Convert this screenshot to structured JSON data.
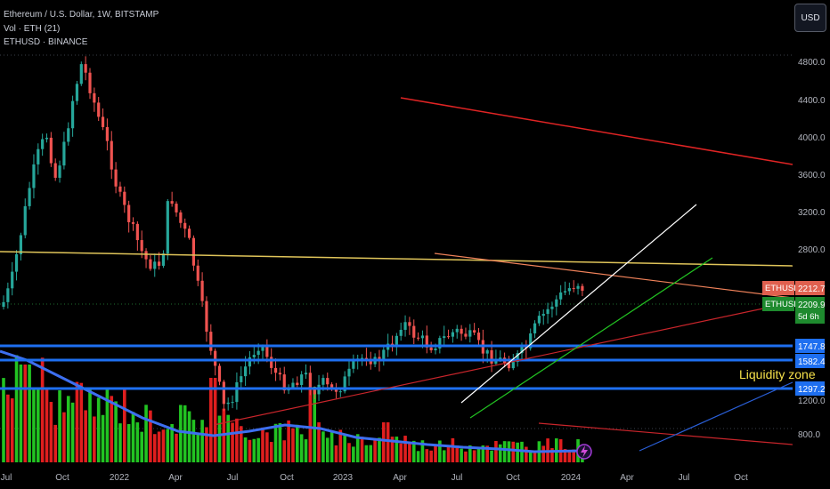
{
  "legend": {
    "line1": "Ethereum / U.S. Dollar, 1W, BITSTAMP",
    "line2": "Vol · ETH (21)",
    "line3": "ETHUSD · BINANCE"
  },
  "currency_button": "USD",
  "chart_data": {
    "type": "candlestick",
    "y_ticks": [
      "4800.0",
      "4400.0",
      "4000.0",
      "3600.0",
      "3200.0",
      "2800.0",
      "1200.0",
      "800.0"
    ],
    "x_ticks": [
      "Jul",
      "Oct",
      "2022",
      "Apr",
      "Jul",
      "Oct",
      "2023",
      "Apr",
      "Jul",
      "Oct",
      "2024",
      "Apr",
      "Jul",
      "Oct"
    ],
    "price_labels": [
      {
        "name": "ETHUSD",
        "value": "2212.7",
        "color": "#e0604f"
      },
      {
        "name": "ETHUSD",
        "value": "2209.9",
        "color": "#1e8a2e",
        "sub": "5d 6h"
      },
      {
        "value": "1747.8",
        "color": "#1565c0"
      },
      {
        "value": "1582.4",
        "color": "#1565c0"
      },
      {
        "value": "1297.2",
        "color": "#1565c0"
      }
    ],
    "horizontal_levels": [
      1747.8,
      1582.4,
      1297.2
    ],
    "annotation": "Liquidity zone",
    "approx_close": 2212.7,
    "ylim": [
      400,
      5000
    ],
    "grid": true,
    "volume_ma_period": 21,
    "colors": {
      "up": "#26a69a",
      "down": "#ef5350",
      "vol_up": "#22c322",
      "vol_down": "#e01e1e",
      "ma": "#3d6ff0",
      "level": "#1e6ff0",
      "annotation": "#f5e04a"
    }
  }
}
